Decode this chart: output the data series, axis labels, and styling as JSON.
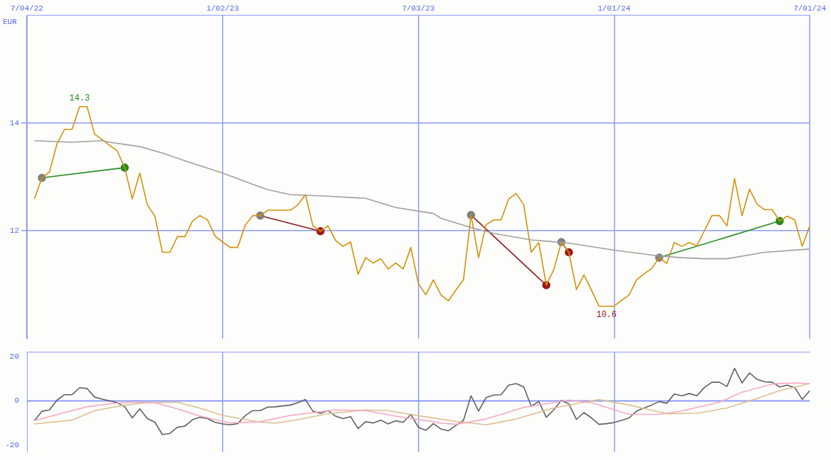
{
  "chart_data": [
    {
      "type": "line",
      "ylabel": "EUR",
      "xlim": [
        "2022-07-04",
        "2024-07-01"
      ],
      "ylim": [
        10,
        16
      ],
      "yticks": [
        12,
        14
      ],
      "xticks": [
        {
          "value": "2022-07-04",
          "label": "7/04/22"
        },
        {
          "value": "2023-01-02",
          "label": "1/02/23"
        },
        {
          "value": "2023-07-03",
          "label": "7/03/23"
        },
        {
          "value": "2024-01-01",
          "label": "1/01/24"
        },
        {
          "value": "2024-07-01",
          "label": "7/01/24"
        }
      ],
      "grid": true,
      "legend": false,
      "marker": "none",
      "line_style": "solid",
      "annotations": [
        {
          "text": "14.3",
          "x": "2022-08-22",
          "y": 14.3
        },
        {
          "text": "10.6",
          "x": "2023-12-25",
          "y": 10.6
        }
      ],
      "x": [
        "2022-07-11",
        "2022-07-18",
        "2022-07-25",
        "2022-08-01",
        "2022-08-08",
        "2022-08-15",
        "2022-08-22",
        "2022-08-29",
        "2022-09-05",
        "2022-09-12",
        "2022-09-19",
        "2022-09-26",
        "2022-10-03",
        "2022-10-10",
        "2022-10-17",
        "2022-10-24",
        "2022-10-31",
        "2022-11-07",
        "2022-11-14",
        "2022-11-21",
        "2022-11-28",
        "2022-12-05",
        "2022-12-12",
        "2022-12-19",
        "2022-12-26",
        "2023-01-02",
        "2023-01-09",
        "2023-01-16",
        "2023-01-23",
        "2023-01-30",
        "2023-02-06",
        "2023-02-13",
        "2023-02-20",
        "2023-02-27",
        "2023-03-06",
        "2023-03-13",
        "2023-03-20",
        "2023-03-27",
        "2023-04-03",
        "2023-04-10",
        "2023-04-17",
        "2023-04-24",
        "2023-05-01",
        "2023-05-08",
        "2023-05-15",
        "2023-05-22",
        "2023-05-29",
        "2023-06-05",
        "2023-06-12",
        "2023-06-19",
        "2023-06-26",
        "2023-07-03",
        "2023-07-10",
        "2023-07-17",
        "2023-07-24",
        "2023-07-31",
        "2023-08-07",
        "2023-08-14",
        "2023-08-21",
        "2023-08-28",
        "2023-09-04",
        "2023-09-11",
        "2023-09-18",
        "2023-09-25",
        "2023-10-02",
        "2023-10-09",
        "2023-10-16",
        "2023-10-23",
        "2023-10-30",
        "2023-11-06",
        "2023-11-13",
        "2023-11-20",
        "2023-11-27",
        "2023-12-04",
        "2023-12-11",
        "2023-12-18",
        "2023-12-25",
        "2024-01-01",
        "2024-01-08",
        "2024-01-15",
        "2024-01-22",
        "2024-01-29",
        "2024-02-05",
        "2024-02-12",
        "2024-02-19",
        "2024-02-26",
        "2024-03-04",
        "2024-03-11",
        "2024-03-18",
        "2024-03-25",
        "2024-04-01",
        "2024-04-08",
        "2024-04-15",
        "2024-04-22",
        "2024-04-29",
        "2024-05-06",
        "2024-05-13",
        "2024-05-20",
        "2024-05-27",
        "2024-06-03",
        "2024-06-10",
        "2024-06-17",
        "2024-06-24",
        "2024-07-01"
      ],
      "series": [
        {
          "color": "#a0a0a0",
          "x": [
            "2022-07-11",
            "2022-08-15",
            "2022-09-12",
            "2022-09-19",
            "2022-10-17",
            "2022-11-07",
            "2022-12-05",
            "2023-01-02",
            "2023-01-30",
            "2023-02-13",
            "2023-03-06",
            "2023-04-10",
            "2023-05-15",
            "2023-06-12",
            "2023-07-17",
            "2023-07-24",
            "2023-08-21",
            "2023-09-11",
            "2023-10-16",
            "2023-11-20",
            "2024-01-01",
            "2024-02-12",
            "2024-03-04",
            "2024-03-25",
            "2024-04-15",
            "2024-05-20",
            "2024-07-01"
          ],
          "values": [
            13.67,
            13.64,
            13.67,
            13.64,
            13.56,
            13.44,
            13.25,
            13.07,
            12.86,
            12.76,
            12.67,
            12.64,
            12.6,
            12.43,
            12.32,
            12.23,
            12.06,
            11.95,
            11.83,
            11.77,
            11.64,
            11.53,
            11.5,
            11.48,
            11.48,
            11.6,
            11.66
          ]
        },
        {
          "color": "#d4900a",
          "values": [
            12.59,
            12.98,
            13.09,
            13.61,
            13.88,
            13.88,
            14.3,
            14.3,
            13.79,
            13.69,
            13.58,
            13.48,
            13.17,
            12.59,
            13.07,
            12.48,
            12.27,
            11.6,
            11.6,
            11.89,
            11.89,
            12.18,
            12.28,
            12.2,
            11.9,
            11.79,
            11.69,
            11.69,
            12.1,
            12.28,
            12.28,
            12.38,
            12.38,
            12.38,
            12.38,
            12.48,
            12.67,
            12.09,
            11.99,
            12.09,
            11.82,
            11.71,
            11.79,
            11.19,
            11.5,
            11.4,
            11.48,
            11.29,
            11.4,
            11.29,
            11.69,
            11.02,
            10.81,
            11.09,
            10.81,
            10.7,
            10.9,
            11.09,
            12.29,
            11.5,
            12.11,
            12.2,
            12.2,
            12.59,
            12.69,
            12.48,
            11.6,
            11.78,
            10.99,
            11.28,
            11.79,
            11.6,
            10.91,
            11.18,
            10.9,
            10.6,
            10.6,
            10.6,
            10.71,
            10.81,
            11.09,
            11.2,
            11.3,
            11.5,
            11.39,
            11.78,
            11.71,
            11.78,
            11.72,
            12.0,
            12.28,
            12.28,
            12.09,
            12.97,
            12.28,
            12.77,
            12.49,
            12.39,
            12.39,
            12.18,
            12.27,
            12.2,
            11.71,
            12.09
          ]
        },
        {
          "color": "#228b22",
          "marker": "circle",
          "colors": [
            "#808080",
            "#228b22"
          ],
          "x": [
            "2022-07-18",
            "2022-10-03"
          ],
          "values": [
            12.98,
            13.17
          ]
        },
        {
          "color": "#8b1a1a",
          "marker": "circle",
          "colors": [
            "#808080",
            "#a01818"
          ],
          "x": [
            "2023-02-06",
            "2023-04-03"
          ],
          "values": [
            12.28,
            11.99
          ]
        },
        {
          "color": "#8b1a1a",
          "marker": "circle",
          "colors": [
            "#808080",
            "#a01818"
          ],
          "x": [
            "2023-08-21",
            "2023-10-30"
          ],
          "values": [
            12.29,
            10.99
          ]
        },
        {
          "color": "#8b1a1a",
          "marker": "circle",
          "colors": [
            "#808080",
            "#a01818"
          ],
          "x": [
            "2023-11-13",
            "2023-11-20"
          ],
          "values": [
            11.79,
            11.6
          ]
        },
        {
          "color": "#228b22",
          "marker": "circle",
          "colors": [
            "#808080",
            "#228b22"
          ],
          "x": [
            "2024-02-12",
            "2024-06-03"
          ],
          "values": [
            11.5,
            12.18
          ]
        }
      ]
    },
    {
      "type": "line",
      "xlim": [
        "2022-07-04",
        "2024-07-01"
      ],
      "ylim": [
        -23,
        22
      ],
      "yticks": [
        -20,
        0,
        20
      ],
      "xticks": [
        {
          "value": "2023-01-02",
          "label": null
        },
        {
          "value": "2023-07-03",
          "label": null
        },
        {
          "value": "2024-01-01",
          "label": null
        }
      ],
      "tick_labels": "y",
      "grid": "x",
      "legend": false,
      "marker": "none",
      "line_style": "solid",
      "ref_lines": [
        {
          "axis": "y",
          "value": 0,
          "color": "#8c9cf5"
        }
      ],
      "series": [
        {
          "color": "#f7a8c0",
          "x": [
            "2022-07-11",
            "2022-08-08",
            "2022-08-29",
            "2022-09-19",
            "2022-10-10",
            "2022-10-31",
            "2022-11-21",
            "2022-12-12",
            "2023-01-09",
            "2023-02-06",
            "2023-03-06",
            "2023-03-27",
            "2023-04-17",
            "2023-05-15",
            "2023-06-12",
            "2023-07-17",
            "2023-07-24",
            "2023-08-07",
            "2023-09-04",
            "2023-10-09",
            "2023-11-20",
            "2023-12-11",
            "2024-01-15",
            "2024-02-12",
            "2024-03-04",
            "2024-04-08",
            "2024-04-29",
            "2024-05-27",
            "2024-06-17",
            "2024-07-01"
          ],
          "values": [
            -9.0,
            -5.3,
            -2.7,
            -1.3,
            -0.6,
            -0.8,
            -3.6,
            -6.9,
            -10.0,
            -9.4,
            -6.6,
            -5.3,
            -4.1,
            -4.4,
            -6.9,
            -9.4,
            -10.1,
            -10.6,
            -8.2,
            -3.0,
            0.4,
            -0.8,
            -6.1,
            -6.1,
            -4.6,
            -0.6,
            3.9,
            7.6,
            8.1,
            7.8
          ]
        },
        {
          "color": "#dcc090",
          "x": [
            "2022-07-11",
            "2022-08-15",
            "2022-09-05",
            "2022-10-03",
            "2022-10-24",
            "2022-11-21",
            "2022-12-12",
            "2023-01-02",
            "2023-02-06",
            "2023-02-20",
            "2023-03-13",
            "2023-04-10",
            "2023-05-15",
            "2023-06-05",
            "2023-07-03",
            "2023-08-07",
            "2023-09-04",
            "2023-10-02",
            "2023-11-06",
            "2023-12-18",
            "2024-01-15",
            "2024-02-19",
            "2024-03-18",
            "2024-04-15",
            "2024-05-13",
            "2024-06-03",
            "2024-07-01"
          ],
          "values": [
            -10.4,
            -8.7,
            -4.4,
            -1.9,
            -0.8,
            -0.6,
            -3.3,
            -6.6,
            -9.6,
            -10.1,
            -8.5,
            -5.8,
            -4.1,
            -4.4,
            -6.7,
            -9.3,
            -10.8,
            -8.2,
            -3.2,
            0.6,
            -1.9,
            -5.8,
            -5.6,
            -3.2,
            1.1,
            4.6,
            7.8
          ]
        },
        {
          "color": "#606060",
          "x": [
            "2022-07-11",
            "2022-07-18",
            "2022-07-25",
            "2022-08-01",
            "2022-08-08",
            "2022-08-15",
            "2022-08-22",
            "2022-08-29",
            "2022-09-05",
            "2022-09-12",
            "2022-09-19",
            "2022-09-26",
            "2022-10-03",
            "2022-10-10",
            "2022-10-17",
            "2022-10-24",
            "2022-10-31",
            "2022-11-07",
            "2022-11-14",
            "2022-11-21",
            "2022-11-28",
            "2022-12-05",
            "2022-12-12",
            "2022-12-19",
            "2022-12-26",
            "2023-01-02",
            "2023-01-09",
            "2023-01-16",
            "2023-01-23",
            "2023-01-30",
            "2023-02-06",
            "2023-02-13",
            "2023-02-20",
            "2023-02-27",
            "2023-03-06",
            "2023-03-13",
            "2023-03-20",
            "2023-03-27",
            "2023-04-03",
            "2023-04-10",
            "2023-04-17",
            "2023-04-24",
            "2023-05-01",
            "2023-05-08",
            "2023-05-15",
            "2023-05-22",
            "2023-05-29",
            "2023-06-05",
            "2023-06-12",
            "2023-06-19",
            "2023-06-26",
            "2023-07-03",
            "2023-07-10",
            "2023-07-17",
            "2023-07-24",
            "2023-07-31",
            "2023-08-07",
            "2023-08-14",
            "2023-08-21",
            "2023-08-28",
            "2023-09-04",
            "2023-09-11",
            "2023-09-18",
            "2023-09-25",
            "2023-10-02",
            "2023-10-09",
            "2023-10-16",
            "2023-10-23",
            "2023-10-30",
            "2023-11-06",
            "2023-11-13",
            "2023-11-20",
            "2023-11-27",
            "2023-12-04",
            "2023-12-11",
            "2023-12-18",
            "2023-12-25",
            "2024-01-01",
            "2024-01-08",
            "2024-01-15",
            "2024-01-22",
            "2024-01-29",
            "2024-02-05",
            "2024-02-12",
            "2024-02-19",
            "2024-02-26",
            "2024-03-04",
            "2024-03-11",
            "2024-03-18",
            "2024-03-25",
            "2024-04-01",
            "2024-04-08",
            "2024-04-15",
            "2024-04-22",
            "2024-04-29",
            "2024-05-06",
            "2024-05-13",
            "2024-05-20",
            "2024-05-27",
            "2024-06-03",
            "2024-06-10",
            "2024-06-17",
            "2024-06-24",
            "2024-07-01"
          ],
          "values": [
            -9.0,
            -4.7,
            -4.1,
            0.3,
            2.8,
            2.8,
            5.9,
            5.6,
            1.7,
            0.8,
            0,
            -0.8,
            -2.7,
            -7.7,
            -3.6,
            -8.0,
            -9.6,
            -15.2,
            -14.7,
            -11.9,
            -11.4,
            -8.5,
            -7.4,
            -8.0,
            -9.7,
            -10.4,
            -10.8,
            -10.3,
            -6.7,
            -4.4,
            -4.4,
            -2.8,
            -2.7,
            -2.3,
            -1.9,
            -0.8,
            0.6,
            -4.7,
            -5.6,
            -4.4,
            -6.9,
            -8.0,
            -7.1,
            -12.5,
            -9.4,
            -10.0,
            -8.7,
            -10.4,
            -9.0,
            -9.7,
            -6.1,
            -11.9,
            -13.3,
            -10.3,
            -12.7,
            -13.5,
            -11.1,
            -8.8,
            2.3,
            -4.6,
            1.5,
            2.6,
            2.8,
            7.1,
            7.8,
            6.3,
            -2.4,
            -0.3,
            -7.4,
            -4.0,
            0.2,
            -1.4,
            -8.4,
            -5.3,
            -7.7,
            -10.6,
            -10.3,
            -9.8,
            -8.8,
            -7.7,
            -4.6,
            -3.2,
            -1.9,
            -0.3,
            -1.1,
            3.1,
            2.3,
            3.3,
            2.3,
            6.0,
            8.4,
            8.4,
            6.5,
            14.7,
            8.1,
            12.6,
            9.7,
            8.6,
            8.4,
            6.3,
            7.1,
            6.0,
            0.7,
            4.6
          ]
        }
      ]
    }
  ]
}
